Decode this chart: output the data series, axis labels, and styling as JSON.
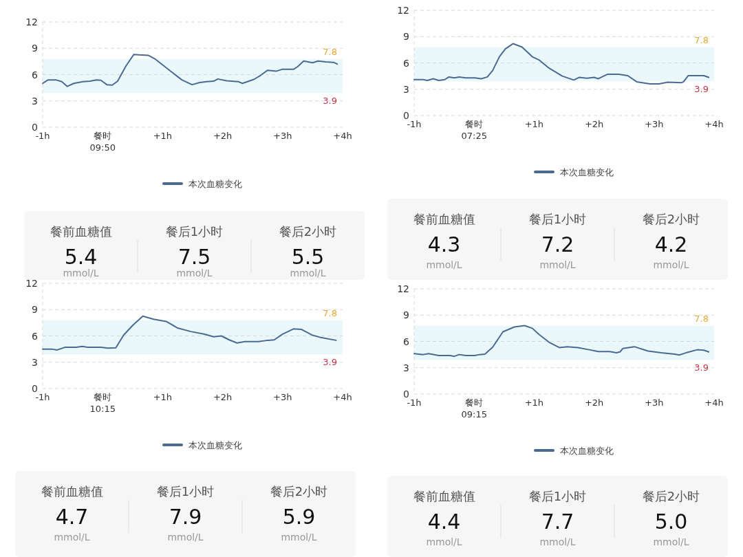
{
  "chart_data": [
    {
      "type": "line",
      "x": [
        -1,
        -0.91,
        -0.78,
        -0.68,
        -0.59,
        -0.48,
        -0.33,
        -0.21,
        -0.1,
        -0.03,
        0.07,
        0.16,
        0.25,
        0.39,
        0.52,
        0.61,
        0.76,
        0.87,
        1.02,
        1.17,
        1.32,
        1.49,
        1.62,
        1.73,
        1.85,
        1.92,
        2.07,
        2.26,
        2.33,
        2.52,
        2.63,
        2.75,
        2.9,
        2.99,
        3.18,
        3.25,
        3.35,
        3.5,
        3.59,
        3.72,
        3.85,
        3.91
      ],
      "series": [
        {
          "name": "本次血糖变化",
          "color": "#4b6a92",
          "values": [
            5.0,
            5.4,
            5.4,
            5.2,
            4.65,
            5.0,
            5.2,
            5.25,
            5.4,
            5.35,
            4.85,
            4.8,
            5.25,
            7.0,
            8.3,
            8.25,
            8.2,
            7.8,
            7.0,
            6.2,
            5.4,
            4.85,
            5.1,
            5.2,
            5.25,
            5.5,
            5.3,
            5.2,
            5.0,
            5.45,
            5.9,
            6.5,
            6.4,
            6.6,
            6.6,
            6.9,
            7.55,
            7.35,
            7.55,
            7.45,
            7.4,
            7.2
          ]
        }
      ],
      "xlim": [
        -1,
        4
      ],
      "xticks": [
        {
          "value": -1,
          "label": "-1h"
        },
        {
          "value": 0,
          "label": "餐时\n09:50"
        },
        {
          "value": 1,
          "label": "+1h"
        },
        {
          "value": 2,
          "label": "+2h"
        },
        {
          "value": 3,
          "label": "+3h"
        },
        {
          "value": 4,
          "label": "+4h"
        }
      ],
      "ylim": [
        0,
        12
      ],
      "yticks": [
        0,
        3,
        6,
        9,
        12
      ],
      "grid": "y",
      "legend": "bottom",
      "bands": [
        {
          "axis": "y",
          "from": 3.9,
          "to": 7.8,
          "color": "#eaf8fc"
        }
      ],
      "annotations": [
        {
          "text": "7.8",
          "y": 7.8
        },
        {
          "text": "3.9",
          "y": 3.9
        }
      ]
    },
    {
      "type": "line",
      "x": [
        -1,
        -0.85,
        -0.78,
        -0.68,
        -0.59,
        -0.49,
        -0.42,
        -0.33,
        -0.25,
        -0.14,
        0.01,
        0.12,
        0.22,
        0.31,
        0.42,
        0.52,
        0.65,
        0.8,
        0.97,
        1.08,
        1.25,
        1.47,
        1.66,
        1.75,
        1.88,
        2.0,
        2.07,
        2.22,
        2.41,
        2.56,
        2.71,
        2.93,
        3.08,
        3.23,
        3.46,
        3.49,
        3.57,
        3.72,
        3.83,
        3.91
      ],
      "series": [
        {
          "name": "本次血糖变化",
          "color": "#4b6a92",
          "values": [
            4.1,
            4.1,
            4.0,
            4.2,
            4.0,
            4.1,
            4.4,
            4.3,
            4.4,
            4.3,
            4.3,
            4.2,
            4.4,
            5.15,
            6.7,
            7.6,
            8.2,
            7.8,
            6.7,
            6.35,
            5.4,
            4.5,
            4.05,
            4.35,
            4.25,
            4.35,
            4.2,
            4.7,
            4.7,
            4.55,
            3.85,
            3.6,
            3.6,
            3.8,
            3.75,
            3.85,
            4.55,
            4.55,
            4.55,
            4.35
          ]
        }
      ],
      "xlim": [
        -1,
        4
      ],
      "xticks": [
        {
          "value": -1,
          "label": "-1h"
        },
        {
          "value": 0,
          "label": "餐时\n07:25"
        },
        {
          "value": 1,
          "label": "+1h"
        },
        {
          "value": 2,
          "label": "+2h"
        },
        {
          "value": 3,
          "label": "+3h"
        },
        {
          "value": 4,
          "label": "+4h"
        }
      ],
      "ylim": [
        0,
        12
      ],
      "yticks": [
        0,
        3,
        6,
        9,
        12
      ],
      "grid": "y",
      "legend": "bottom",
      "bands": [
        {
          "axis": "y",
          "from": 3.9,
          "to": 7.8,
          "color": "#eaf8fc"
        }
      ],
      "annotations": [
        {
          "text": "7.8",
          "y": 7.8
        },
        {
          "text": "3.9",
          "y": 3.9
        }
      ]
    },
    {
      "type": "other",
      "categories": [
        "餐前血糖值",
        "餐后1小时",
        "餐后2小时"
      ],
      "values": [
        5.4,
        7.5,
        5.5
      ],
      "value_labels": [
        "5.4",
        "7.5",
        "5.5"
      ],
      "annotations": [
        "mmol/L",
        "mmol/L",
        "mmol/L"
      ]
    },
    {
      "type": "other",
      "categories": [
        "餐前血糖值",
        "餐后1小时",
        "餐后2小时"
      ],
      "values": [
        4.3,
        7.2,
        4.2
      ],
      "value_labels": [
        "4.3",
        "7.2",
        "4.2"
      ],
      "annotations": [
        "mmol/L",
        "mmol/L",
        "mmol/L"
      ]
    },
    {
      "type": "line",
      "x": [
        -1,
        -0.85,
        -0.76,
        -0.63,
        -0.44,
        -0.34,
        -0.25,
        -0.03,
        0.09,
        0.22,
        0.35,
        0.5,
        0.67,
        0.85,
        1.06,
        1.25,
        1.47,
        1.7,
        1.85,
        1.98,
        2.11,
        2.24,
        2.37,
        2.6,
        2.75,
        2.86,
        3.0,
        3.18,
        3.31,
        3.49,
        3.62,
        3.89
      ],
      "series": [
        {
          "name": "本次血糖变化",
          "color": "#4b6a92",
          "values": [
            4.5,
            4.5,
            4.4,
            4.7,
            4.7,
            4.8,
            4.7,
            4.7,
            4.6,
            4.65,
            6.1,
            7.2,
            8.25,
            7.9,
            7.65,
            6.9,
            6.5,
            6.2,
            5.9,
            6.0,
            5.55,
            5.2,
            5.35,
            5.35,
            5.5,
            5.55,
            6.2,
            6.8,
            6.75,
            6.1,
            5.85,
            5.5
          ]
        }
      ],
      "xlim": [
        -1,
        4
      ],
      "xticks": [
        {
          "value": -1,
          "label": "-1h"
        },
        {
          "value": 0,
          "label": "餐时\n10:15"
        },
        {
          "value": 1,
          "label": "+1h"
        },
        {
          "value": 2,
          "label": "+2h"
        },
        {
          "value": 3,
          "label": "+3h"
        },
        {
          "value": 4,
          "label": "+4h"
        }
      ],
      "ylim": [
        0,
        12
      ],
      "yticks": [
        0,
        3,
        6,
        9,
        12
      ],
      "grid": "y",
      "legend": "bottom",
      "bands": [
        {
          "axis": "y",
          "from": 3.9,
          "to": 7.8,
          "color": "#eaf8fc"
        }
      ],
      "annotations": [
        {
          "text": "7.8",
          "y": 7.8
        },
        {
          "text": "3.9",
          "y": 3.9
        }
      ]
    },
    {
      "type": "line",
      "x": [
        -1,
        -0.85,
        -0.76,
        -0.59,
        -0.4,
        -0.33,
        -0.25,
        -0.14,
        0.01,
        0.09,
        0.18,
        0.31,
        0.48,
        0.67,
        0.84,
        0.97,
        1.08,
        1.25,
        1.42,
        1.55,
        1.73,
        1.92,
        2.07,
        2.26,
        2.37,
        2.43,
        2.48,
        2.67,
        2.9,
        3.12,
        3.34,
        3.42,
        3.53,
        3.72,
        3.83,
        3.91
      ],
      "series": [
        {
          "name": "本次血糖变化",
          "color": "#4b6a92",
          "values": [
            4.6,
            4.5,
            4.6,
            4.4,
            4.4,
            4.3,
            4.5,
            4.4,
            4.4,
            4.5,
            4.55,
            5.35,
            7.1,
            7.65,
            7.8,
            7.5,
            6.8,
            5.9,
            5.3,
            5.4,
            5.3,
            5.05,
            4.85,
            4.85,
            4.7,
            4.8,
            5.2,
            5.4,
            4.9,
            4.7,
            4.55,
            4.45,
            4.7,
            5.05,
            5.0,
            4.8
          ]
        }
      ],
      "xlim": [
        -1,
        4
      ],
      "xticks": [
        {
          "value": -1,
          "label": "-1h"
        },
        {
          "value": 0,
          "label": "餐时\n09:15"
        },
        {
          "value": 1,
          "label": "+1h"
        },
        {
          "value": 2,
          "label": "+2h"
        },
        {
          "value": 3,
          "label": "+3h"
        },
        {
          "value": 4,
          "label": "+4h"
        }
      ],
      "ylim": [
        0,
        12
      ],
      "yticks": [
        0,
        3,
        6,
        9,
        12
      ],
      "grid": "y",
      "legend": "bottom",
      "bands": [
        {
          "axis": "y",
          "from": 3.9,
          "to": 7.8,
          "color": "#eaf8fc"
        }
      ],
      "annotations": [
        {
          "text": "7.8",
          "y": 7.8
        },
        {
          "text": "3.9",
          "y": 3.9
        }
      ]
    },
    {
      "type": "other",
      "categories": [
        "餐前血糖值",
        "餐后1小时",
        "餐后2小时"
      ],
      "values": [
        4.7,
        7.9,
        5.9
      ],
      "value_labels": [
        "4.7",
        "7.9",
        "5.9"
      ],
      "annotations": [
        "mmol/L",
        "mmol/L",
        "mmol/L"
      ]
    },
    {
      "type": "other",
      "categories": [
        "餐前血糖值",
        "餐后1小时",
        "餐后2小时"
      ],
      "values": [
        4.4,
        7.7,
        5.0
      ],
      "value_labels": [
        "4.4",
        "7.7",
        "5.0"
      ],
      "annotations": [
        "mmol/L",
        "mmol/L",
        "mmol/L"
      ]
    }
  ]
}
